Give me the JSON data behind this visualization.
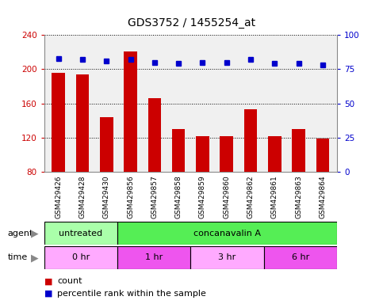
{
  "title": "GDS3752 / 1455254_at",
  "samples": [
    "GSM429426",
    "GSM429428",
    "GSM429430",
    "GSM429856",
    "GSM429857",
    "GSM429858",
    "GSM429859",
    "GSM429860",
    "GSM429862",
    "GSM429861",
    "GSM429863",
    "GSM429864"
  ],
  "counts": [
    196,
    194,
    144,
    221,
    166,
    130,
    122,
    122,
    153,
    122,
    130,
    119
  ],
  "percentile_ranks": [
    83,
    82,
    81,
    82,
    80,
    79,
    80,
    80,
    82,
    79,
    79,
    78
  ],
  "ylim_left": [
    80,
    240
  ],
  "ylim_right": [
    0,
    100
  ],
  "yticks_left": [
    80,
    120,
    160,
    200,
    240
  ],
  "yticks_right": [
    0,
    25,
    50,
    75,
    100
  ],
  "bar_color": "#cc0000",
  "dot_color": "#0000cc",
  "agent_groups": [
    {
      "label": "untreated",
      "start": 0,
      "end": 3,
      "color": "#aaffaa"
    },
    {
      "label": "concanavalin A",
      "start": 3,
      "end": 12,
      "color": "#55ee55"
    }
  ],
  "time_groups": [
    {
      "label": "0 hr",
      "start": 0,
      "end": 3,
      "color": "#ffaaff"
    },
    {
      "label": "1 hr",
      "start": 3,
      "end": 6,
      "color": "#ee55ee"
    },
    {
      "label": "3 hr",
      "start": 6,
      "end": 9,
      "color": "#ffaaff"
    },
    {
      "label": "6 hr",
      "start": 9,
      "end": 12,
      "color": "#ee55ee"
    }
  ],
  "legend_count_color": "#cc0000",
  "legend_dot_color": "#0000cc",
  "bg_color": "#ffffff",
  "plot_bg": "#f0f0f0",
  "xticklabel_bg": "#cccccc"
}
